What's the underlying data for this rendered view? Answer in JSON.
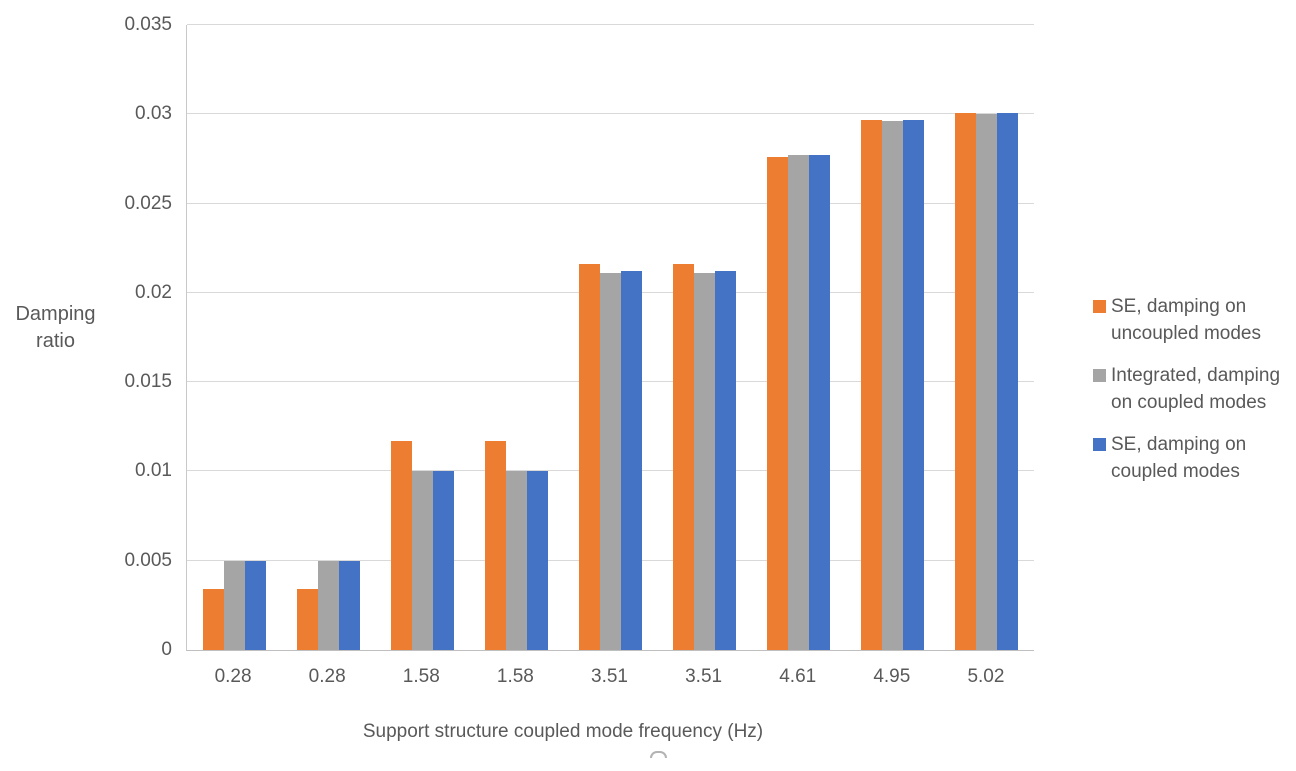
{
  "chart_data": {
    "type": "bar",
    "title": "",
    "xlabel": "Support structure coupled mode frequency (Hz)",
    "ylabel": "Damping ratio",
    "categories": [
      "0.28",
      "0.28",
      "1.58",
      "1.58",
      "3.51",
      "3.51",
      "4.61",
      "4.95",
      "5.02"
    ],
    "series": [
      {
        "name": "SE, damping on uncoupled modes",
        "color": "#ED7D31",
        "values": [
          0.0034,
          0.0034,
          0.0117,
          0.0117,
          0.0216,
          0.0216,
          0.0276,
          0.0297,
          0.0301
        ]
      },
      {
        "name": "Integrated, damping on coupled modes",
        "color": "#A5A5A5",
        "values": [
          0.005,
          0.005,
          0.01,
          0.01,
          0.0211,
          0.0211,
          0.0277,
          0.0296,
          0.03
        ]
      },
      {
        "name": "SE, damping on coupled modes",
        "color": "#4472C4",
        "values": [
          0.005,
          0.005,
          0.01,
          0.01,
          0.0212,
          0.0212,
          0.0277,
          0.0297,
          0.0301
        ]
      }
    ],
    "ylim": [
      0,
      0.035
    ],
    "ytick_step": 0.005,
    "ytick_labels": [
      "0",
      "0.005",
      "0.01",
      "0.015",
      "0.02",
      "0.025",
      "0.03",
      "0.035"
    ],
    "grid": true,
    "legend_position": "right",
    "legend": [
      {
        "color": "#ED7D31",
        "lines": [
          "SE, damping on",
          "uncoupled modes"
        ]
      },
      {
        "color": "#A5A5A5",
        "lines": [
          "Integrated, damping",
          "on coupled modes"
        ]
      },
      {
        "color": "#4472C4",
        "lines": [
          "SE, damping on",
          "coupled modes"
        ]
      }
    ],
    "colors": {
      "orange": "#ED7D31",
      "gray": "#A5A5A5",
      "blue": "#4472C4",
      "text": "#595959",
      "gridline": "#D9D9D9"
    }
  }
}
